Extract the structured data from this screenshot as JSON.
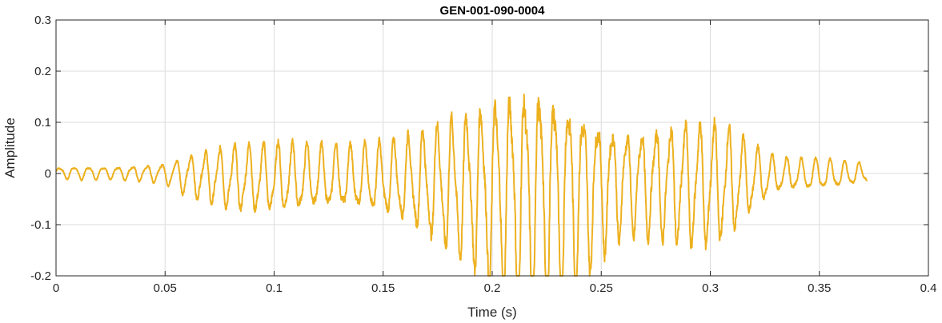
{
  "chart_data": {
    "type": "line",
    "title": "GEN-001-090-0004",
    "xlabel": "Time (s)",
    "ylabel": "Amplitude",
    "xlim": [
      0,
      0.4
    ],
    "ylim": [
      -0.2,
      0.3
    ],
    "xticks": [
      0,
      0.05,
      0.1,
      0.15,
      0.2,
      0.25,
      0.3,
      0.35,
      0.4
    ],
    "xtick_labels": [
      "0",
      "0.05",
      "0.1",
      "0.15",
      "0.2",
      "0.25",
      "0.3",
      "0.35",
      "0.4"
    ],
    "yticks": [
      -0.2,
      -0.1,
      0,
      0.1,
      0.2,
      0.3
    ],
    "ytick_labels": [
      "-0.2",
      "-0.1",
      "0",
      "0.1",
      "0.2",
      "0.3"
    ],
    "grid": true,
    "series_color": "#EDB120",
    "series": [
      {
        "x_start": 0,
        "x_end": 0.372,
        "oscillation_hz": 150,
        "envelope": [
          [
            0.0,
            0.012
          ],
          [
            0.01,
            0.015
          ],
          [
            0.02,
            0.014
          ],
          [
            0.03,
            0.015
          ],
          [
            0.04,
            0.018
          ],
          [
            0.05,
            0.022
          ],
          [
            0.06,
            0.045
          ],
          [
            0.07,
            0.06
          ],
          [
            0.08,
            0.072
          ],
          [
            0.09,
            0.078
          ],
          [
            0.1,
            0.078
          ],
          [
            0.11,
            0.076
          ],
          [
            0.12,
            0.072
          ],
          [
            0.13,
            0.07
          ],
          [
            0.14,
            0.072
          ],
          [
            0.15,
            0.08
          ],
          [
            0.16,
            0.095
          ],
          [
            0.17,
            0.12
          ],
          [
            0.18,
            0.15
          ],
          [
            0.19,
            0.175
          ],
          [
            0.2,
            0.21
          ],
          [
            0.21,
            0.24
          ],
          [
            0.22,
            0.255
          ],
          [
            0.23,
            0.24
          ],
          [
            0.24,
            0.2
          ],
          [
            0.25,
            0.15
          ],
          [
            0.26,
            0.12
          ],
          [
            0.27,
            0.12
          ],
          [
            0.28,
            0.13
          ],
          [
            0.29,
            0.14
          ],
          [
            0.3,
            0.14
          ],
          [
            0.31,
            0.12
          ],
          [
            0.32,
            0.07
          ],
          [
            0.33,
            0.04
          ],
          [
            0.34,
            0.035
          ],
          [
            0.35,
            0.035
          ],
          [
            0.36,
            0.03
          ],
          [
            0.372,
            0.02
          ]
        ]
      }
    ]
  }
}
